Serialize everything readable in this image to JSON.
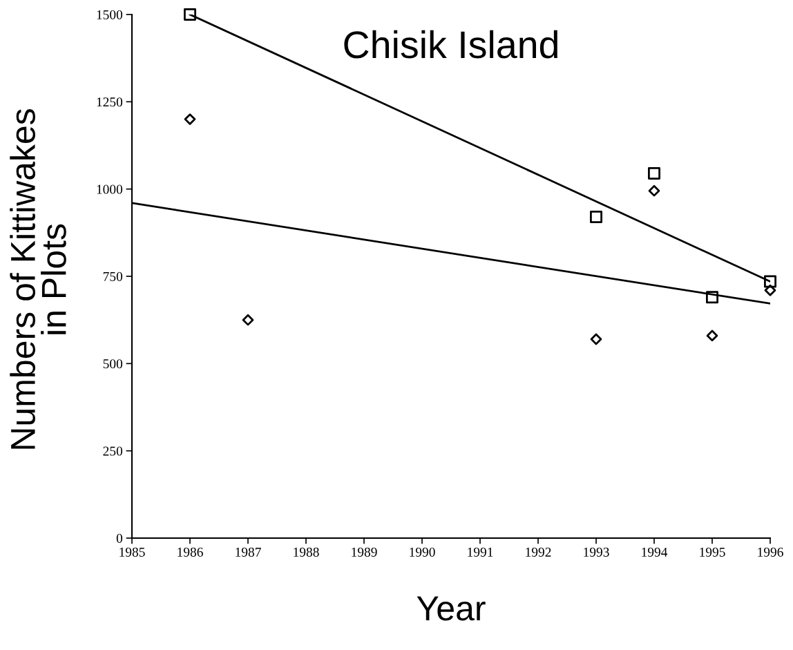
{
  "chart_data": {
    "type": "scatter",
    "title": "Chisik Island",
    "xlabel": "Year",
    "ylabel": "Numbers of Kittiwakes\nin Plots",
    "series": [
      {
        "marker": "square",
        "color": "#000000",
        "x": [
          1986,
          1993,
          1994,
          1995,
          1996
        ],
        "values": [
          1500,
          920,
          1045,
          690,
          735
        ]
      },
      {
        "marker": "diamond",
        "color": "#000000",
        "x": [
          1986,
          1987,
          1993,
          1994,
          1995,
          1996
        ],
        "values": [
          1200,
          625,
          570,
          995,
          580,
          710
        ]
      },
      {
        "type": "line",
        "marker": "none",
        "line_style": "solid",
        "color": "#000000",
        "x": [
          1986,
          1996
        ],
        "values": [
          1500,
          735
        ]
      },
      {
        "type": "line",
        "marker": "none",
        "line_style": "solid",
        "color": "#000000",
        "x": [
          1985,
          1996
        ],
        "values": [
          960,
          672
        ]
      }
    ],
    "xlim": [
      1985,
      1996
    ],
    "xticks": [
      1985,
      1986,
      1987,
      1988,
      1989,
      1990,
      1991,
      1992,
      1993,
      1994,
      1995,
      1996
    ],
    "ylim": [
      0,
      1500
    ],
    "yticks": [
      0,
      250,
      500,
      750,
      1000,
      1250,
      1500
    ],
    "grid": false,
    "legend": false
  }
}
